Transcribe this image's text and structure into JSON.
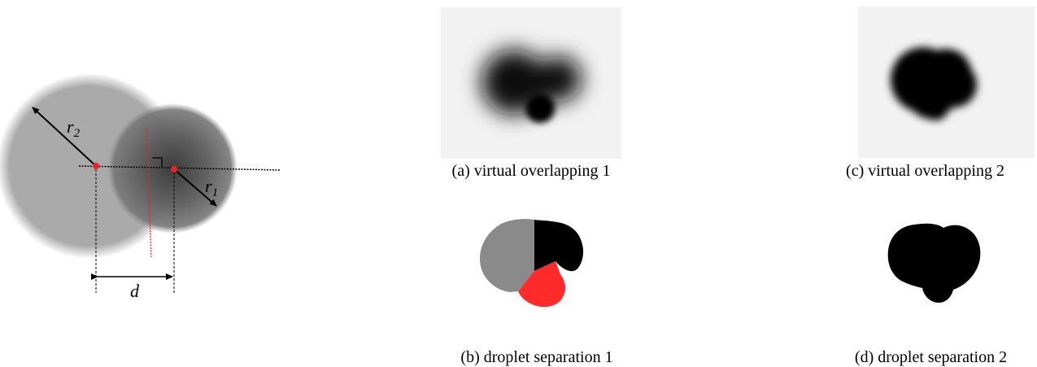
{
  "diagram": {
    "labels": {
      "r2": "r",
      "r2_sub": "2",
      "r1": "r",
      "r1_sub": "1",
      "d": "d"
    }
  },
  "captions": {
    "a": "(a) virtual overlapping 1",
    "b": "(b) droplet separation 1",
    "c": "(c) virtual overlapping 2",
    "d": "(d) droplet separation 2"
  },
  "colors": {
    "center_marker": "#e8232a",
    "separation_gray": "#8a8a8a",
    "separation_black": "#000000",
    "separation_red": "#ff2a2a",
    "panel_background": "#f2f2f2"
  }
}
